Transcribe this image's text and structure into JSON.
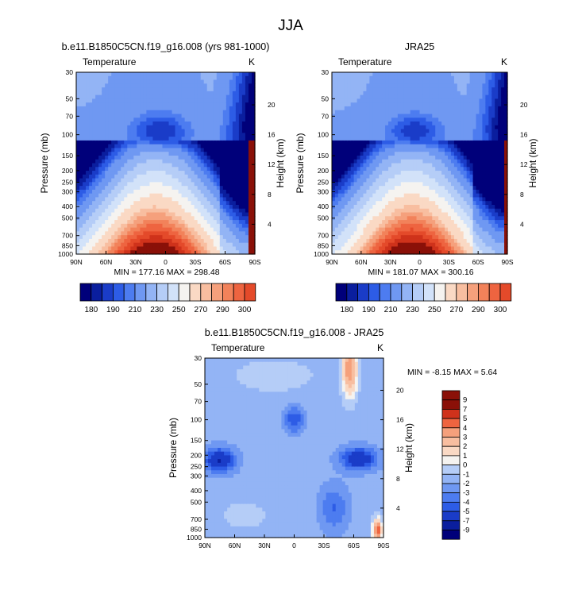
{
  "title": "JJA",
  "palette": {
    "blue": [
      "#00007a",
      "#0a1e9e",
      "#1a3cc8",
      "#2d5ce6",
      "#4d7cf0",
      "#6f98f2",
      "#93b4f5",
      "#b5cdf7",
      "#d2e2f9"
    ],
    "neutral": "#f5f3f0",
    "red": [
      "#fad9c4",
      "#f8bea0",
      "#f5a07c",
      "#f2825a",
      "#ee6440",
      "#e44a2a",
      "#cf321b",
      "#b01f12",
      "#8a1008"
    ]
  },
  "panels": [
    {
      "id": "model",
      "title": "b.e11.B1850C5CN.f19_g16.008 (yrs 981-1000)",
      "subtitle_left": "Temperature",
      "subtitle_right": "K",
      "ylabel": "Pressure (mb)",
      "y2label": "Height (km)",
      "stats": "MIN = 177.16  MAX = 298.48"
    },
    {
      "id": "obs",
      "title": "JRA25",
      "subtitle_left": "Temperature",
      "subtitle_right": "K",
      "ylabel": "Pressure (mb)",
      "y2label": "Height (km)",
      "stats": "MIN = 181.07  MAX = 300.16"
    },
    {
      "id": "diff",
      "title": "b.e11.B1850C5CN.f19_g16.008 - JRA25",
      "subtitle_left": "Temperature",
      "subtitle_right": "K",
      "ylabel": "Pressure (mb)",
      "y2label": "Height (km)",
      "stats": "MIN = -8.15  MAX =  5.64"
    }
  ],
  "chart_data": [
    {
      "type": "heatmap",
      "title": "b.e11.B1850C5CN.f19_g16.008 (yrs 981-1000)",
      "variable": "Temperature",
      "units": "K",
      "x_ticks": [
        "90N",
        "60N",
        "30N",
        "0",
        "30S",
        "60S",
        "90S"
      ],
      "y_ticks": [
        30,
        50,
        70,
        100,
        150,
        200,
        250,
        300,
        400,
        500,
        700,
        850,
        1000
      ],
      "y2_ticks": [
        20,
        16,
        12,
        8,
        4
      ],
      "ylim": [
        1000,
        30
      ],
      "colorbar_labels": [
        "180",
        "190",
        "210",
        "230",
        "250",
        "270",
        "290",
        "300"
      ],
      "min": 177.16,
      "max": 298.48
    },
    {
      "type": "heatmap",
      "title": "JRA25",
      "variable": "Temperature",
      "units": "K",
      "x_ticks": [
        "90N",
        "60N",
        "30N",
        "0",
        "30S",
        "60S",
        "90S"
      ],
      "y_ticks": [
        30,
        50,
        70,
        100,
        150,
        200,
        250,
        300,
        400,
        500,
        700,
        850,
        1000
      ],
      "y2_ticks": [
        20,
        16,
        12,
        8,
        4
      ],
      "ylim": [
        1000,
        30
      ],
      "colorbar_labels": [
        "180",
        "190",
        "210",
        "230",
        "250",
        "270",
        "290",
        "300"
      ],
      "min": 181.07,
      "max": 300.16
    },
    {
      "type": "heatmap",
      "title": "b.e11.B1850C5CN.f19_g16.008 - JRA25",
      "variable": "Temperature",
      "units": "K",
      "x_ticks": [
        "90N",
        "60N",
        "30N",
        "0",
        "30S",
        "60S",
        "90S"
      ],
      "y_ticks": [
        30,
        50,
        70,
        100,
        150,
        200,
        250,
        300,
        400,
        500,
        700,
        850,
        1000
      ],
      "y2_ticks": [
        20,
        16,
        12,
        8,
        4
      ],
      "ylim": [
        1000,
        30
      ],
      "colorbar_labels": [
        "9",
        "7",
        "5",
        "4",
        "3",
        "2",
        "1",
        "0",
        "-1",
        "-2",
        "-3",
        "-4",
        "-5",
        "-7",
        "-9"
      ],
      "min": -8.15,
      "max": 5.64
    }
  ]
}
